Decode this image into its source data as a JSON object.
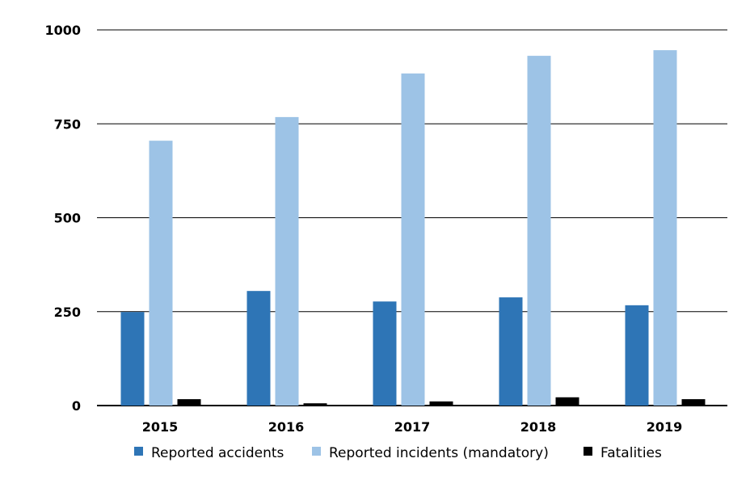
{
  "chart_data": {
    "type": "bar",
    "title": "",
    "xlabel": "",
    "ylabel": "",
    "categories": [
      "2015",
      "2016",
      "2017",
      "2018",
      "2019"
    ],
    "ylim": [
      0,
      1000
    ],
    "yticks": [
      "0",
      "250",
      "500",
      "750",
      "1000"
    ],
    "grid": true,
    "legend_placement": "bottom",
    "series": [
      {
        "name": "Reported accidents",
        "color": "#2e75b6",
        "values": [
          249,
          305,
          277,
          288,
          267
        ]
      },
      {
        "name": "Reported incidents (mandatory)",
        "color": "#9dc3e6",
        "values": [
          705,
          768,
          884,
          931,
          946
        ]
      },
      {
        "name": "Fatalities",
        "color": "#000000",
        "values": [
          17,
          6,
          11,
          22,
          17
        ]
      }
    ]
  }
}
